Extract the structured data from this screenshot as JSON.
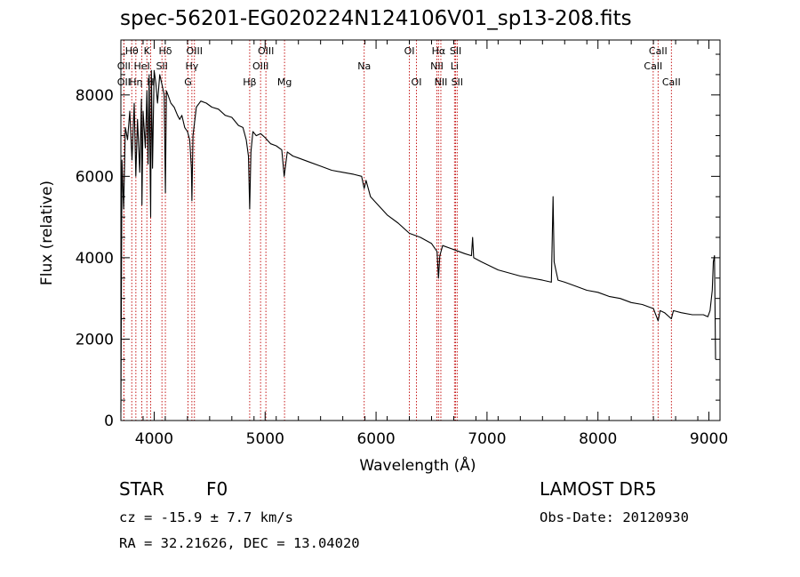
{
  "title": "spec-56201-EG020224N124106V01_sp13-208.fits",
  "info": {
    "object_class": "STAR",
    "subclass": "F0",
    "survey": "LAMOST DR5",
    "cz": "cz = -15.9 ± 7.7 km/s",
    "obs_date": "Obs-Date: 20120930",
    "radec": "RA =  32.21626, DEC =  13.04020"
  },
  "chart_data": {
    "type": "line",
    "xlabel": "Wavelength (Å)",
    "ylabel": "Flux (relative)",
    "xlim": [
      3700,
      9100
    ],
    "ylim": [
      0,
      9350
    ],
    "xticks": [
      4000,
      5000,
      6000,
      7000,
      8000,
      9000
    ],
    "yticks": [
      0,
      2000,
      4000,
      6000,
      8000
    ],
    "line_color": "#000000",
    "marker_color": "#c00000",
    "series": [
      {
        "x": [
          3700,
          3710,
          3725,
          3740,
          3760,
          3780,
          3800,
          3820,
          3835,
          3850,
          3870,
          3885,
          3890,
          3900,
          3920,
          3935,
          3945,
          3955,
          3968,
          3975,
          3985,
          4000,
          4015,
          4030,
          4050,
          4075,
          4090,
          4101,
          4110,
          4125,
          4150,
          4180,
          4210,
          4230,
          4250,
          4275,
          4300,
          4320,
          4335,
          4340,
          4350,
          4380,
          4420,
          4470,
          4520,
          4580,
          4640,
          4700,
          4760,
          4800,
          4830,
          4850,
          4861,
          4872,
          4890,
          4920,
          4960,
          5000,
          5050,
          5100,
          5150,
          5172,
          5200,
          5250,
          5300,
          5400,
          5500,
          5600,
          5700,
          5800,
          5870,
          5893,
          5910,
          5950,
          6000,
          6100,
          6200,
          6300,
          6400,
          6500,
          6550,
          6563,
          6575,
          6600,
          6700,
          6800,
          6860,
          6870,
          6880,
          6950,
          7100,
          7300,
          7500,
          7580,
          7595,
          7605,
          7620,
          7640,
          7700,
          7800,
          7900,
          8000,
          8100,
          8200,
          8300,
          8400,
          8500,
          8542,
          8560,
          8600,
          8662,
          8680,
          8750,
          8850,
          8950,
          8990,
          9010,
          9030,
          9040,
          9050,
          9060
        ],
        "y": [
          200,
          6400,
          5200,
          7200,
          6900,
          7600,
          6400,
          7800,
          6000,
          7400,
          6100,
          7900,
          5300,
          7600,
          6700,
          8100,
          6300,
          8500,
          5000,
          8600,
          6200,
          8600,
          8300,
          7800,
          8500,
          8200,
          8000,
          5600,
          8100,
          8000,
          7800,
          7700,
          7500,
          7400,
          7500,
          7200,
          7100,
          6900,
          6200,
          5400,
          7000,
          7700,
          7850,
          7800,
          7700,
          7650,
          7500,
          7450,
          7250,
          7200,
          6900,
          6500,
          5200,
          6600,
          7100,
          7000,
          7050,
          6950,
          6800,
          6750,
          6650,
          6000,
          6600,
          6500,
          6450,
          6350,
          6250,
          6150,
          6100,
          6050,
          6000,
          5700,
          5900,
          5500,
          5350,
          5050,
          4850,
          4600,
          4500,
          4350,
          4150,
          3500,
          4050,
          4300,
          4200,
          4100,
          4050,
          4500,
          4000,
          3900,
          3700,
          3550,
          3450,
          3400,
          5500,
          3900,
          3700,
          3450,
          3400,
          3300,
          3200,
          3150,
          3050,
          3000,
          2900,
          2850,
          2750,
          2450,
          2700,
          2650,
          2500,
          2700,
          2650,
          2600,
          2600,
          2550,
          2700,
          3200,
          3900,
          4050,
          1500
        ]
      }
    ],
    "lines": [
      {
        "label": "Hθ",
        "wave": 3798,
        "row": 0
      },
      {
        "label": "OII",
        "wave": 3727,
        "row": 1
      },
      {
        "label": "OII",
        "wave": 3727,
        "row": 2
      },
      {
        "label": "Hη",
        "wave": 3835,
        "row": 2
      },
      {
        "label": "HeI",
        "wave": 3889,
        "row": 1
      },
      {
        "label": "K",
        "wave": 3934,
        "row": 0
      },
      {
        "label": "SII",
        "wave": 4070,
        "row": 1
      },
      {
        "label": "Hδ",
        "wave": 4101,
        "row": 0
      },
      {
        "label": "H",
        "wave": 3968,
        "row": 2
      },
      {
        "label": "OIII",
        "wave": 4363,
        "row": 0
      },
      {
        "label": "Hγ",
        "wave": 4340,
        "row": 1
      },
      {
        "label": "G",
        "wave": 4305,
        "row": 2
      },
      {
        "label": "OIII",
        "wave": 5007,
        "row": 0
      },
      {
        "label": "OIII",
        "wave": 4959,
        "row": 1
      },
      {
        "label": "Hβ",
        "wave": 4861,
        "row": 2
      },
      {
        "label": "Mg",
        "wave": 5175,
        "row": 2
      },
      {
        "label": "Na",
        "wave": 5893,
        "row": 1
      },
      {
        "label": "OI",
        "wave": 6300,
        "row": 0
      },
      {
        "label": "OI",
        "wave": 6364,
        "row": 2
      },
      {
        "label": "Hα",
        "wave": 6563,
        "row": 0
      },
      {
        "label": "NII",
        "wave": 6548,
        "row": 1
      },
      {
        "label": "NII",
        "wave": 6584,
        "row": 2
      },
      {
        "label": "SII",
        "wave": 6717,
        "row": 0
      },
      {
        "label": "Li",
        "wave": 6707,
        "row": 1
      },
      {
        "label": "SII",
        "wave": 6731,
        "row": 2
      },
      {
        "label": "CaII",
        "wave": 8542,
        "row": 0
      },
      {
        "label": "CaII",
        "wave": 8498,
        "row": 1
      },
      {
        "label": "CaII",
        "wave": 8662,
        "row": 2
      }
    ]
  }
}
